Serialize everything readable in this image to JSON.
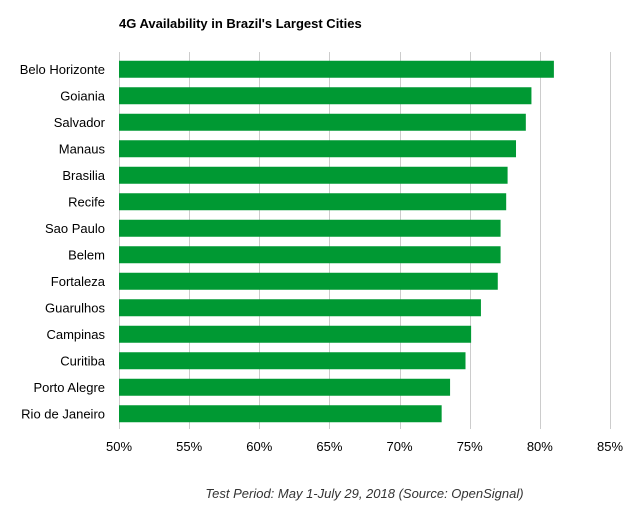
{
  "chart_data": {
    "type": "bar",
    "orientation": "horizontal",
    "title": "4G Availability in Brazil's Largest Cities",
    "xlabel": "",
    "ylabel": "",
    "categories": [
      "Belo Horizonte",
      "Goiania",
      "Salvador",
      "Manaus",
      "Brasilia",
      "Recife",
      "Sao Paulo",
      "Belem",
      "Fortaleza",
      "Guarulhos",
      "Campinas",
      "Curitiba",
      "Porto Alegre",
      "Rio de Janeiro"
    ],
    "values": [
      81.0,
      79.4,
      79.0,
      78.3,
      77.7,
      77.6,
      77.2,
      77.2,
      77.0,
      75.8,
      75.1,
      74.7,
      73.6,
      73.0
    ],
    "xlim": [
      50,
      85
    ],
    "ticks": [
      50,
      55,
      60,
      65,
      70,
      75,
      80,
      85
    ],
    "tick_labels": [
      "50%",
      "55%",
      "60%",
      "65%",
      "70%",
      "75%",
      "80%",
      "85%"
    ],
    "grid": true,
    "legend": "none",
    "bar_color": "#009933",
    "grid_color": "#cccccc"
  },
  "footnote": "Test Period: May 1-July 29, 2018 (Source: OpenSignal)"
}
